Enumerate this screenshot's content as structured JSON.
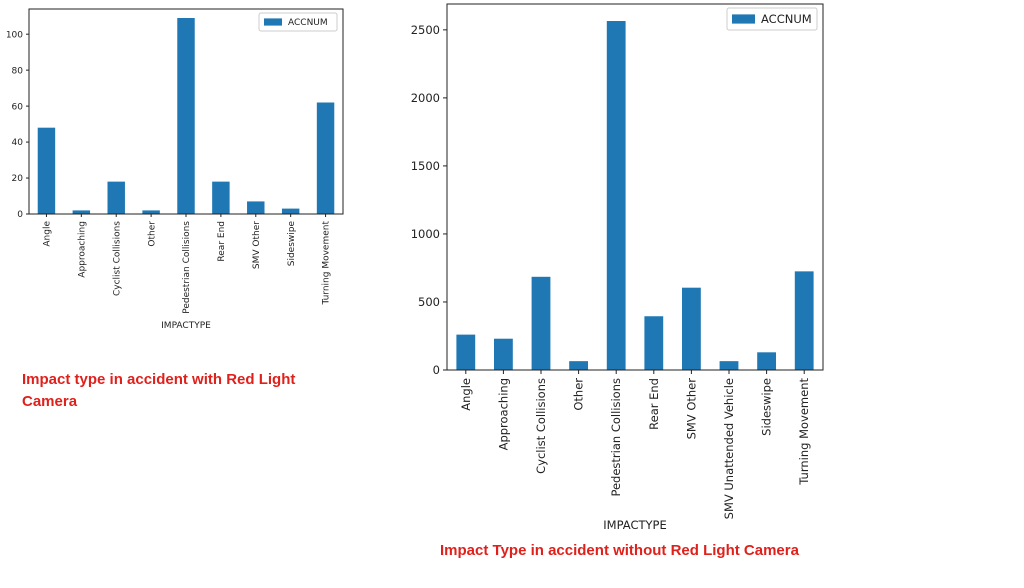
{
  "colors": {
    "bar": "#1f77b4",
    "axis": "#222222",
    "caption": "#e0201b"
  },
  "chart_data": [
    {
      "type": "bar",
      "categories": [
        "Angle",
        "Approaching",
        "Cyclist Collisions",
        "Other",
        "Pedestrian Collisions",
        "Rear End",
        "SMV Other",
        "Sideswipe",
        "Turning Movement"
      ],
      "series": [
        {
          "name": "ACCNUM",
          "values": [
            48,
            2,
            18,
            2,
            109,
            18,
            7,
            3,
            62
          ]
        }
      ],
      "xlabel": "IMPACTYPE",
      "ylabel": "",
      "ylim": [
        0,
        114
      ],
      "yticks": [
        0,
        20,
        40,
        60,
        80,
        100
      ],
      "legend": "top-right",
      "grid": false,
      "caption": "Impact type in accident with Red Light Camera"
    },
    {
      "type": "bar",
      "categories": [
        "Angle",
        "Approaching",
        "Cyclist Collisions",
        "Other",
        "Pedestrian Collisions",
        "Rear End",
        "SMV Other",
        "SMV Unattended Vehicle",
        "Sideswipe",
        "Turning Movement"
      ],
      "series": [
        {
          "name": "ACCNUM",
          "values": [
            260,
            230,
            685,
            65,
            2565,
            395,
            605,
            65,
            130,
            725
          ]
        }
      ],
      "xlabel": "IMPACTYPE",
      "ylabel": "",
      "ylim": [
        0,
        2690
      ],
      "yticks": [
        0,
        500,
        1000,
        1500,
        2000,
        2500
      ],
      "legend": "top-right",
      "grid": false,
      "caption": "Impact Type in accident without Red Light Camera"
    }
  ]
}
